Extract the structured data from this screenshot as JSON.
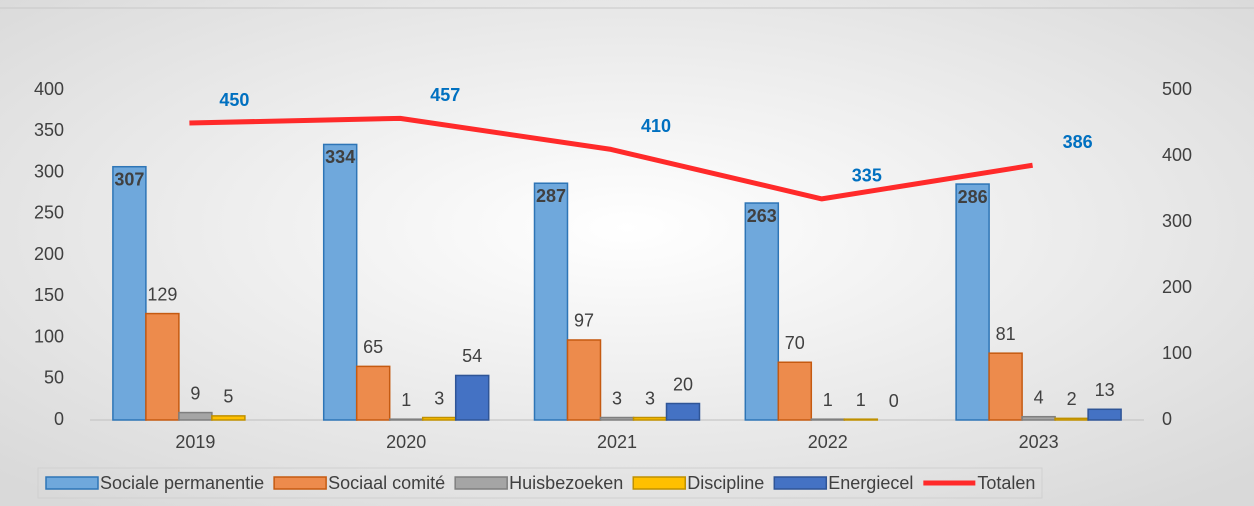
{
  "chart_data": {
    "type": "bar",
    "categories": [
      "2019",
      "2020",
      "2021",
      "2022",
      "2023"
    ],
    "series": [
      {
        "name": "Sociale permanentie",
        "color": "#6fa8dc",
        "values": [
          307,
          334,
          287,
          263,
          286
        ]
      },
      {
        "name": "Sociaal comité",
        "color": "#ed8b4c",
        "values": [
          129,
          65,
          97,
          70,
          81
        ]
      },
      {
        "name": "Huisbezoeken",
        "color": "#a5a5a5",
        "values": [
          9,
          1,
          3,
          1,
          4
        ]
      },
      {
        "name": "Discipline",
        "color": "#ffc000",
        "values": [
          5,
          3,
          3,
          1,
          2
        ]
      },
      {
        "name": "Energiecel",
        "color": "#4472c4",
        "values": [
          null,
          54,
          20,
          0,
          13
        ]
      },
      {
        "name": "Totalen",
        "color": "#ff2a2a",
        "type": "line",
        "axis": "y2",
        "values": [
          450,
          457,
          410,
          335,
          386
        ]
      }
    ],
    "ylim": [
      0,
      400
    ],
    "yticks": [
      0,
      50,
      100,
      150,
      200,
      250,
      300,
      350,
      400
    ],
    "y2lim": [
      0,
      500
    ],
    "y2ticks": [
      0,
      100,
      200,
      300,
      400,
      500
    ],
    "grid": false,
    "legend": "bottom"
  }
}
